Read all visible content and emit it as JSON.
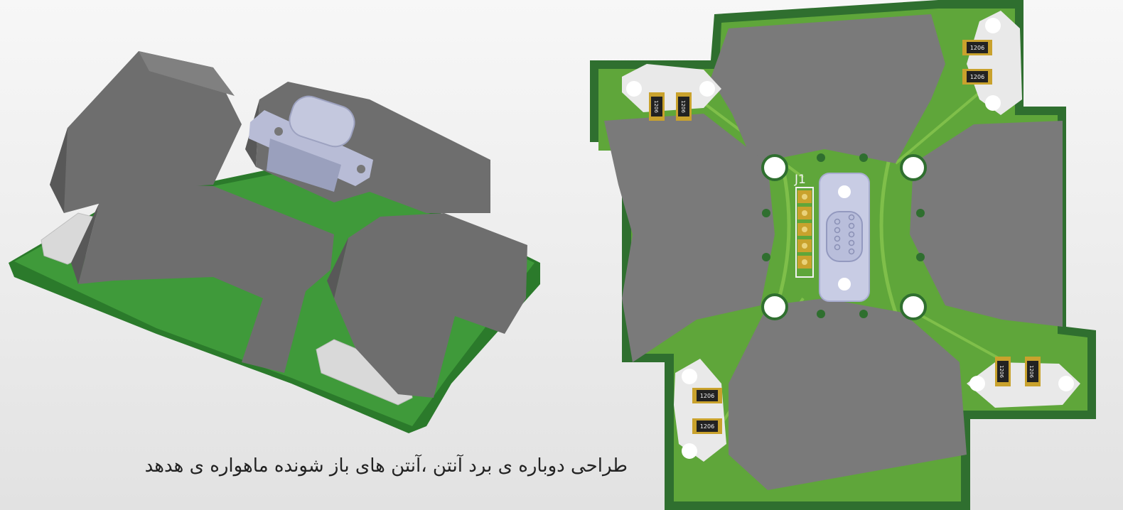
{
  "caption": {
    "text": "طراحی دوباره ی برد آنتن ،آنتن های باز شونده ماهواره ی هدهد"
  },
  "board_2d": {
    "designator": "J1",
    "resistor_code": "1206",
    "colors": {
      "board_dark": "#2f6f2f",
      "board_light": "#5fa63a",
      "trace": "#7fbf4a",
      "panel": "#7a7a7a",
      "pad": "#c9a22d",
      "connector": "#c8cce4",
      "mount": "#e9e9e9"
    }
  },
  "board_3d": {
    "colors": {
      "board": "#2b7a2b",
      "panel": "#6e6e6e",
      "panel_side": "#585858",
      "connector": "#b8bcd6",
      "clip": "#d9d9d9"
    }
  }
}
